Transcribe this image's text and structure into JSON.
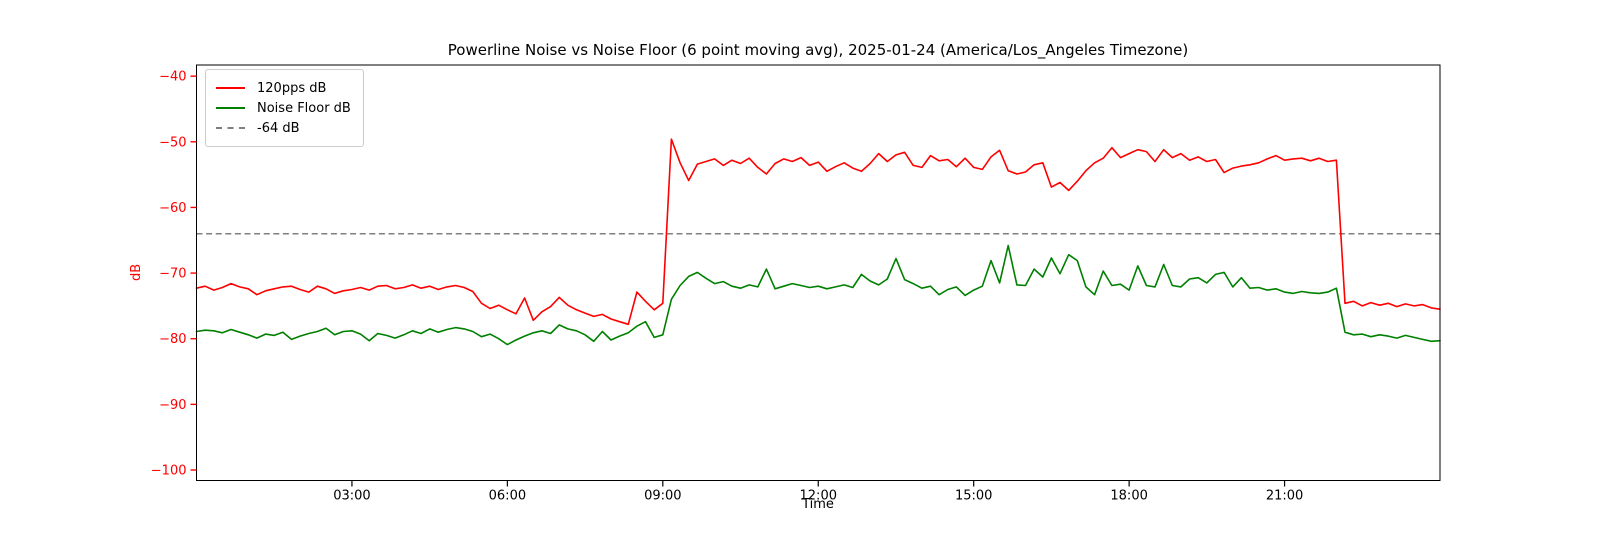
{
  "chart_data": {
    "type": "line",
    "title": "Powerline Noise vs Noise Floor (6 point moving avg), 2025-01-24 (America/Los_Angeles Timezone)",
    "xlabel": "Time",
    "ylabel": "dB",
    "grid": false,
    "legend_position": "upper left",
    "xlim_hours": [
      0,
      24
    ],
    "ylim": [
      -101.6,
      -38.3
    ],
    "x_tick_hours": [
      3,
      6,
      9,
      12,
      15,
      18,
      21
    ],
    "x_tick_labels": [
      "03:00",
      "06:00",
      "09:00",
      "12:00",
      "15:00",
      "18:00",
      "21:00"
    ],
    "y_ticks": [
      -40,
      -50,
      -60,
      -70,
      -80,
      -90,
      -100
    ],
    "y_tick_labels": [
      "−40",
      "−50",
      "−60",
      "−70",
      "−80",
      "−90",
      "−100"
    ],
    "colors": {
      "background": "#ffffff",
      "spine": "#000000",
      "y_axis": "#ff0000",
      "x_axis": "#000000",
      "legend_border": "#cccccc"
    },
    "reference_line": {
      "label": "-64 dB",
      "value": -64,
      "style": "dashed",
      "color": "#7f7f7f"
    },
    "x_start_hour": 0,
    "x_step_minutes": 10,
    "series": [
      {
        "name": "120pps dB",
        "color": "#ff0000",
        "values": [
          -72.3,
          -72.0,
          -72.6,
          -72.2,
          -71.6,
          -72.1,
          -72.4,
          -73.3,
          -72.7,
          -72.4,
          -72.1,
          -72.0,
          -72.5,
          -72.9,
          -72.0,
          -72.4,
          -73.1,
          -72.7,
          -72.5,
          -72.2,
          -72.6,
          -72.0,
          -71.9,
          -72.4,
          -72.2,
          -71.8,
          -72.3,
          -72.0,
          -72.5,
          -72.1,
          -71.9,
          -72.2,
          -72.8,
          -74.6,
          -75.4,
          -74.9,
          -75.6,
          -76.2,
          -73.8,
          -77.2,
          -75.9,
          -75.1,
          -73.7,
          -74.9,
          -75.6,
          -76.1,
          -76.6,
          -76.3,
          -77.0,
          -77.4,
          -77.8,
          -72.9,
          -74.3,
          -75.6,
          -74.6,
          -49.6,
          -53.2,
          -55.9,
          -53.4,
          -53.0,
          -52.6,
          -53.6,
          -52.8,
          -53.3,
          -52.5,
          -53.9,
          -54.9,
          -53.3,
          -52.6,
          -53.0,
          -52.4,
          -53.6,
          -53.1,
          -54.5,
          -53.8,
          -53.2,
          -54.0,
          -54.5,
          -53.3,
          -51.8,
          -53.0,
          -52.0,
          -51.6,
          -53.6,
          -53.9,
          -52.1,
          -52.9,
          -52.7,
          -53.8,
          -52.5,
          -53.9,
          -54.2,
          -52.3,
          -51.3,
          -54.4,
          -54.9,
          -54.6,
          -53.5,
          -53.2,
          -56.9,
          -56.2,
          -57.4,
          -56.0,
          -54.4,
          -53.2,
          -52.5,
          -50.9,
          -52.4,
          -51.8,
          -51.2,
          -51.5,
          -53.0,
          -51.2,
          -52.4,
          -51.8,
          -52.8,
          -52.3,
          -53.0,
          -52.7,
          -54.7,
          -54.0,
          -53.7,
          -53.5,
          -53.2,
          -52.6,
          -52.1,
          -52.8,
          -52.6,
          -52.5,
          -52.9,
          -52.5,
          -53.0,
          -52.8,
          -74.6,
          -74.3,
          -75.0,
          -74.5,
          -74.9,
          -74.6,
          -75.1,
          -74.7,
          -75.0,
          -74.8,
          -75.3,
          -75.5
        ]
      },
      {
        "name": "Noise Floor dB",
        "color": "#008000",
        "values": [
          -78.9,
          -78.7,
          -78.8,
          -79.1,
          -78.6,
          -79.0,
          -79.4,
          -79.9,
          -79.3,
          -79.5,
          -79.0,
          -80.1,
          -79.6,
          -79.2,
          -78.9,
          -78.4,
          -79.4,
          -78.9,
          -78.8,
          -79.3,
          -80.3,
          -79.2,
          -79.5,
          -79.9,
          -79.4,
          -78.8,
          -79.2,
          -78.5,
          -79.0,
          -78.6,
          -78.3,
          -78.5,
          -78.9,
          -79.7,
          -79.3,
          -80.0,
          -80.9,
          -80.2,
          -79.6,
          -79.1,
          -78.8,
          -79.2,
          -77.9,
          -78.5,
          -78.8,
          -79.4,
          -80.4,
          -78.9,
          -80.2,
          -79.6,
          -79.1,
          -78.1,
          -77.4,
          -79.8,
          -79.4,
          -74.0,
          -71.9,
          -70.5,
          -69.9,
          -70.8,
          -71.6,
          -71.3,
          -72.0,
          -72.3,
          -71.8,
          -72.1,
          -69.4,
          -72.4,
          -72.0,
          -71.6,
          -71.9,
          -72.2,
          -72.0,
          -72.4,
          -72.1,
          -71.8,
          -72.2,
          -70.2,
          -71.2,
          -71.8,
          -70.9,
          -67.8,
          -71.0,
          -71.6,
          -72.3,
          -72.0,
          -73.3,
          -72.5,
          -72.1,
          -73.4,
          -72.6,
          -72.0,
          -68.1,
          -71.5,
          -65.8,
          -71.8,
          -71.9,
          -69.4,
          -70.6,
          -67.7,
          -70.1,
          -67.2,
          -68.1,
          -72.1,
          -73.3,
          -69.7,
          -71.9,
          -71.7,
          -72.6,
          -68.9,
          -71.9,
          -72.1,
          -68.7,
          -71.9,
          -72.1,
          -70.9,
          -70.7,
          -71.5,
          -70.2,
          -69.9,
          -72.1,
          -70.7,
          -72.3,
          -72.2,
          -72.6,
          -72.4,
          -72.9,
          -73.1,
          -72.8,
          -73.0,
          -73.1,
          -72.9,
          -72.3,
          -79.0,
          -79.4,
          -79.3,
          -79.7,
          -79.4,
          -79.6,
          -79.9,
          -79.5,
          -79.8,
          -80.1,
          -80.4,
          -80.3
        ]
      }
    ]
  }
}
